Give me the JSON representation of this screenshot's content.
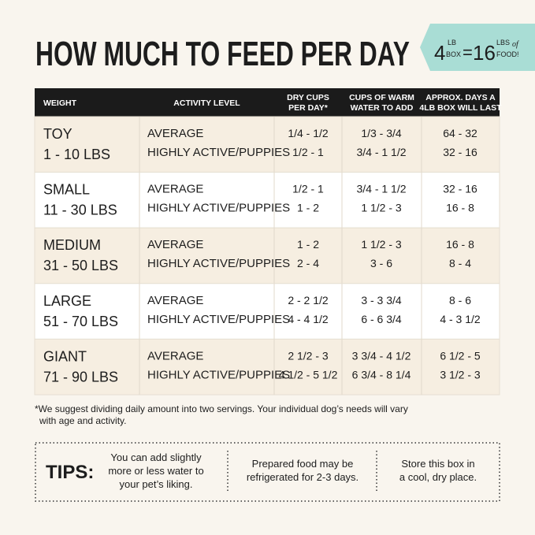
{
  "title": "HOW MUCH TO FEED PER DAY",
  "badge": {
    "number1": "4",
    "unit1_top": "LB",
    "unit1_bottom": "BOX",
    "equals": "=",
    "number2": "16",
    "unit2_top": "LBS",
    "unit2_script": "of",
    "unit2_bottom": "FOOD!"
  },
  "table": {
    "header": [
      [
        "WEIGHT"
      ],
      [
        "ACTIVITY LEVEL"
      ],
      [
        "DRY CUPS",
        "PER DAY*"
      ],
      [
        "CUPS OF WARM",
        "WATER TO ADD"
      ],
      [
        "APPROX. DAYS A",
        "4LB BOX WILL LAST"
      ]
    ],
    "rows": [
      [
        "TOY",
        "1 - 10 LBS",
        "AVERAGE",
        "HIGHLY ACTIVE/PUPPIES",
        "1/4 - 1/2",
        "1/2 - 1",
        "1/3 - 3/4",
        "3/4 - 1 1/2",
        "64 - 32",
        "32 - 16"
      ],
      [
        "SMALL",
        "11 - 30 LBS",
        "AVERAGE",
        "HIGHLY ACTIVE/PUPPIES",
        "1/2 - 1",
        "1 - 2",
        "3/4 - 1 1/2",
        "1 1/2 - 3",
        "32 - 16",
        "16 - 8"
      ],
      [
        "MEDIUM",
        "31 - 50 LBS",
        "AVERAGE",
        "HIGHLY ACTIVE/PUPPIES",
        "1 - 2",
        "2 - 4",
        "1 1/2 - 3",
        "3 - 6",
        "16 - 8",
        "8 - 4"
      ],
      [
        "LARGE",
        "51 - 70 LBS",
        "AVERAGE",
        "HIGHLY ACTIVE/PUPPIES",
        "2 - 2 1/2",
        "4 - 4 1/2",
        "3 - 3 3/4",
        "6 - 6 3/4",
        "8 - 6",
        "4 - 3 1/2"
      ],
      [
        "GIANT",
        "71 - 90 LBS",
        "AVERAGE",
        "HIGHLY ACTIVE/PUPPIES",
        "2 1/2 - 3",
        "4 1/2 - 5 1/2",
        "3 3/4 - 4 1/2",
        "6 3/4 - 8 1/4",
        "6 1/2 - 5",
        "3 1/2 - 3"
      ]
    ]
  },
  "footnote": [
    "*We suggest dividing daily amount into two servings. Your individual dog’s needs will vary",
    "with age and activity."
  ],
  "tips": {
    "label": "TIPS:",
    "items": [
      [
        "You can add slightly",
        "more or less water to",
        "your pet’s liking."
      ],
      [
        "Prepared food may be",
        "refrigerated for 2-3 days."
      ],
      [
        "Store this box in",
        "a cool, dry place."
      ]
    ]
  }
}
